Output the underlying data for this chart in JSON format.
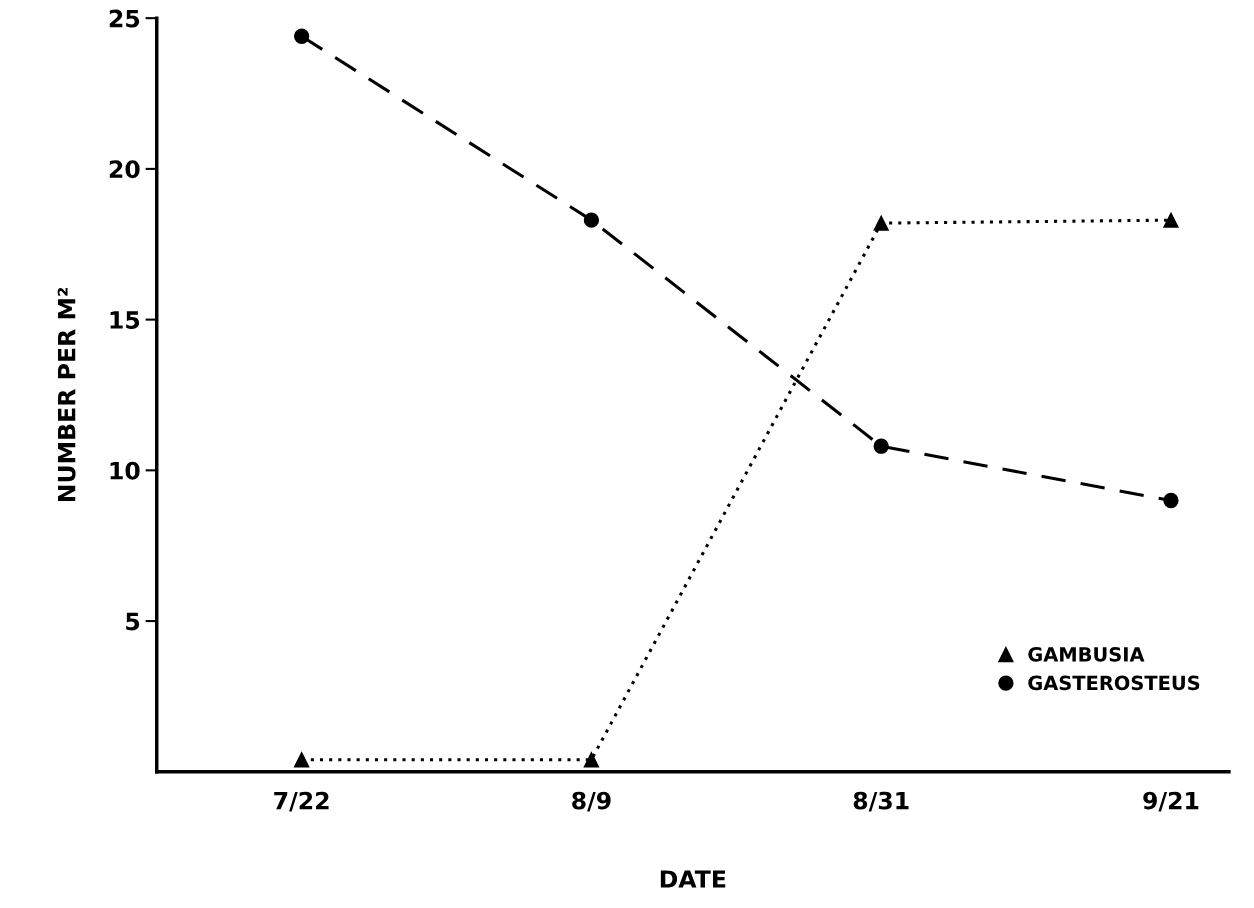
{
  "chart_data": {
    "type": "line",
    "xlabel": "DATE",
    "ylabel": "NUMBER PER M²",
    "categories": [
      "7/22",
      "8/9",
      "8/31",
      "9/21"
    ],
    "series": [
      {
        "name": "GAMBUSIA",
        "color": "#000000",
        "values": [
          0.4,
          0.4,
          18.2,
          18.3
        ],
        "marker": "triangle",
        "line_style": "dotted"
      },
      {
        "name": "GASTEROSTEUS",
        "color": "#000000",
        "values": [
          24.4,
          18.3,
          10.8,
          9.0
        ],
        "marker": "circle",
        "line_style": "dashed"
      }
    ],
    "ylim": [
      0,
      25
    ],
    "yticks": [
      5,
      10,
      15,
      20,
      25
    ],
    "grid": false,
    "legend": "bottom right"
  }
}
